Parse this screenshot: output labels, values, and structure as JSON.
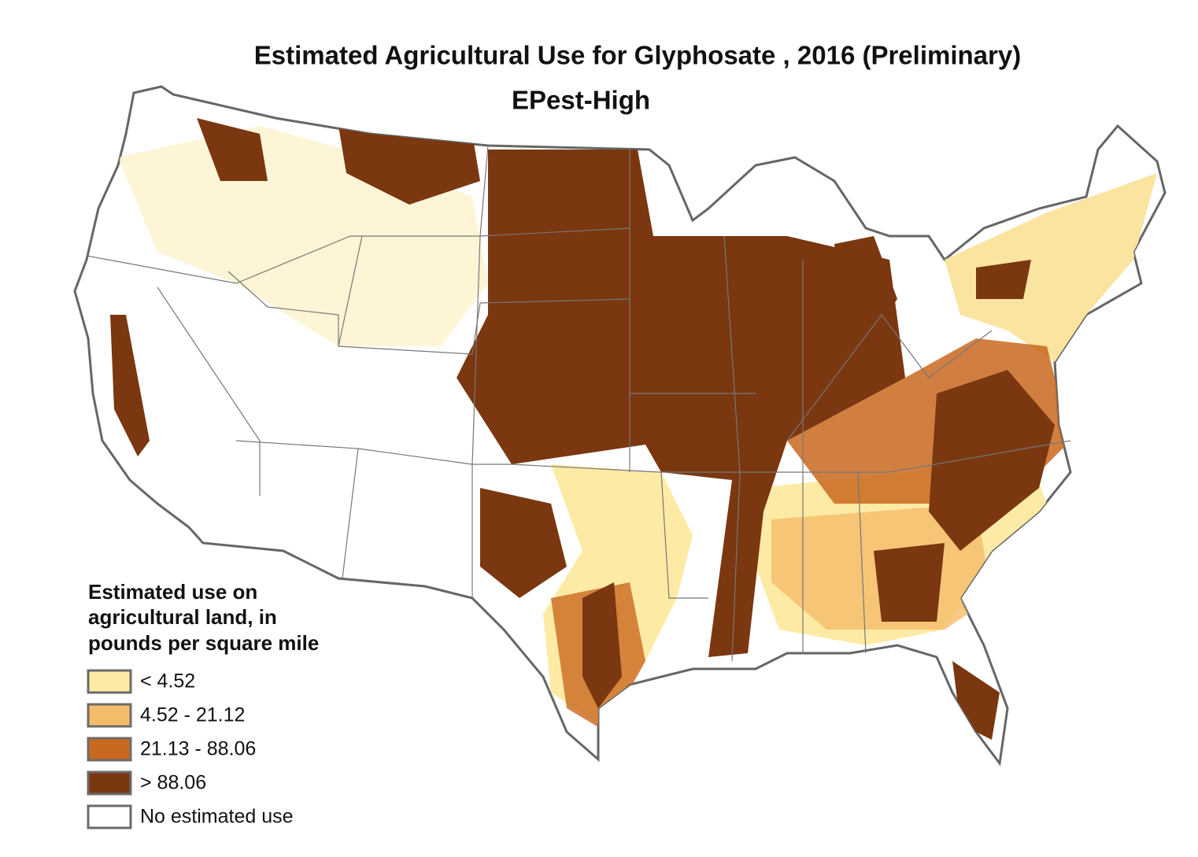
{
  "title": "Estimated Agricultural Use for Glyphosate , 2016 (Preliminary)",
  "subtitle": "EPest-High",
  "legend": {
    "title_lines": [
      "Estimated use on",
      "agricultural land, in",
      "pounds per square mile"
    ],
    "items": [
      {
        "label": "< 4.52",
        "color": "#fdeba5"
      },
      {
        "label": "4.52 - 21.12",
        "color": "#f4bc6a"
      },
      {
        "label": "21.13 - 88.06",
        "color": "#c9691f"
      },
      {
        "label": "> 88.06",
        "color": "#7a3710"
      },
      {
        "label": "No estimated use",
        "color": "#ffffff"
      }
    ]
  }
}
